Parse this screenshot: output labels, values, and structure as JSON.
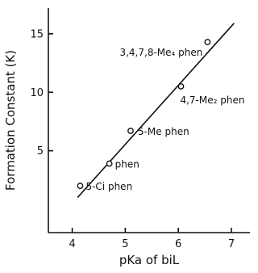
{
  "chart_data": {
    "type": "scatter",
    "title": "",
    "xlabel": "pKa of biL",
    "ylabel": "Formation Constant (K)",
    "xlim": [
      3.55,
      7.35
    ],
    "ylim": [
      -2.0,
      17.2
    ],
    "xticks": [
      4,
      5,
      6,
      7
    ],
    "yticks": [
      5,
      10,
      15
    ],
    "grid": false,
    "legend": "none",
    "points": [
      {
        "x": 4.15,
        "y": 2.0,
        "label": "5-Ci phen"
      },
      {
        "x": 4.7,
        "y": 3.9,
        "label": "phen"
      },
      {
        "x": 5.1,
        "y": 6.7,
        "label": "5-Me phen"
      },
      {
        "x": 6.05,
        "y": 10.5,
        "label": "4,7-Me₂ phen"
      },
      {
        "x": 6.55,
        "y": 14.3,
        "label": "3,4,7,8-Me₄ phen"
      }
    ],
    "fit_line": {
      "x": [
        4.1,
        7.05
      ],
      "y": [
        1.0,
        15.9
      ]
    }
  }
}
